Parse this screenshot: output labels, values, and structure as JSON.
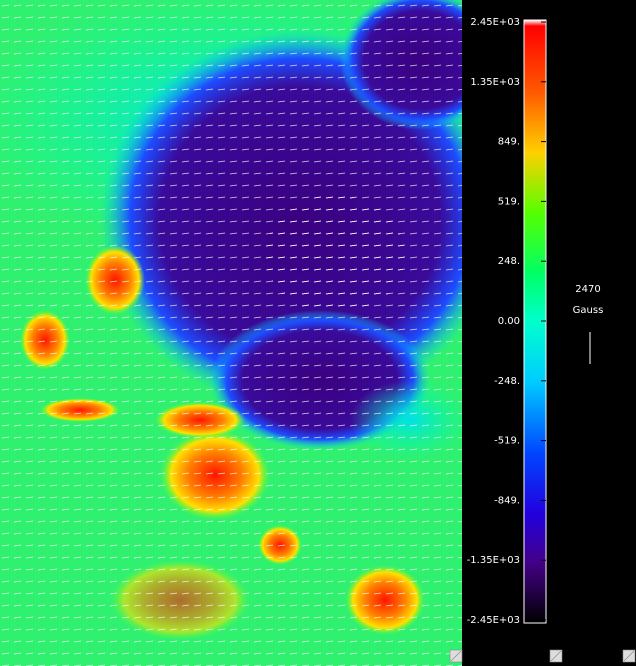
{
  "colorbar": {
    "labels": [
      "2.45E+03",
      "1.35E+03",
      "849.",
      "519.",
      "248.",
      "0.00",
      "-248.",
      "-519.",
      "-849.",
      "-1.35E+03",
      "-2.45E+03"
    ]
  },
  "scale_arrow": {
    "value": "2470",
    "unit": "Gauss"
  }
}
